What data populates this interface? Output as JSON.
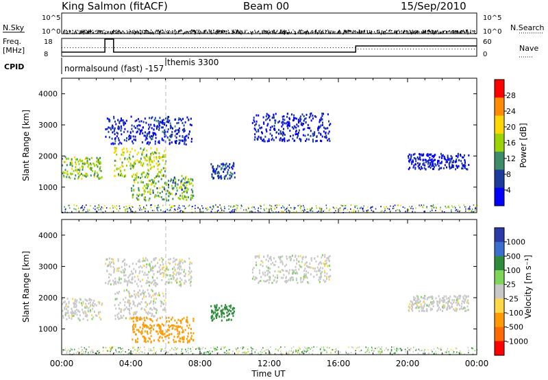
{
  "header": {
    "station": "King Salmon (fitACF)",
    "beam": "Beam 00",
    "date": "15/Sep/2010"
  },
  "noise_panel": {
    "left_label": "N.Sky",
    "right_label": "N.Search",
    "left_ticks": [
      "10^5",
      "10^0"
    ],
    "right_ticks": [
      "10^5",
      "10^0"
    ]
  },
  "freq_panel": {
    "left_label_1": "Freq.",
    "left_label_2": "[MHz]",
    "left_ticks": [
      "18",
      "8"
    ],
    "right_label": "Nave",
    "right_ticks": [
      "60",
      "0"
    ]
  },
  "cpid": {
    "label": "CPID",
    "modes": [
      {
        "text": "normalsound (fast)  -157",
        "start_hour": 0
      },
      {
        "text": "themis 3300",
        "start_hour": 6
      }
    ]
  },
  "chart_data": [
    {
      "type": "heatmap",
      "name": "power",
      "ylabel": "Slant Range [km]",
      "xlabel": "Time UT",
      "xlim_hours": [
        0,
        24
      ],
      "ylim": [
        180,
        4500
      ],
      "x_ticks": [
        "00:00",
        "04:00",
        "08:00",
        "12:00",
        "16:00",
        "20:00",
        "00:00"
      ],
      "y_ticks": [
        1000,
        2000,
        3000,
        4000
      ],
      "colorbar": {
        "label": "Power [dB]",
        "ticks": [
          "28",
          "24",
          "20",
          "16",
          "12",
          "8",
          "4"
        ],
        "colors": [
          "#0000ff",
          "#1c3c9c",
          "#3d8c6a",
          "#9cd400",
          "#ffd700",
          "#ff8c00",
          "#ff0000"
        ]
      }
    },
    {
      "type": "heatmap",
      "name": "velocity",
      "ylabel": "Slant Range [km]",
      "xlabel": "Time UT",
      "xlim_hours": [
        0,
        24
      ],
      "ylim": [
        180,
        4500
      ],
      "x_ticks": [
        "00:00",
        "04:00",
        "08:00",
        "12:00",
        "16:00",
        "20:00",
        "00:00"
      ],
      "y_ticks": [
        1000,
        2000,
        3000,
        4000
      ],
      "colorbar": {
        "label": "Velocity [m s⁻¹]",
        "ticks": [
          "1000",
          "500",
          "100",
          "25",
          "-25",
          "-100",
          "-500",
          "-1000"
        ],
        "colors": [
          "#2a3aa8",
          "#3a6fd0",
          "#2e8b3a",
          "#7fd45a",
          "#c8c8c8",
          "#ffd84a",
          "#ff9a00",
          "#ff6a00",
          "#ff0000"
        ]
      }
    }
  ],
  "echo_regions": [
    {
      "t0": 0.0,
      "t1": 2.3,
      "r0": 1300,
      "r1": 2000,
      "p": 16,
      "v": 0
    },
    {
      "t0": 3.0,
      "t1": 6.0,
      "r0": 1350,
      "r1": 2300,
      "p": 18,
      "v": 0
    },
    {
      "t0": 4.0,
      "t1": 7.6,
      "r0": 600,
      "r1": 1400,
      "p": 15,
      "v": -150
    },
    {
      "t0": 2.5,
      "t1": 7.5,
      "r0": 2400,
      "r1": 3300,
      "p": 6,
      "v": 0
    },
    {
      "t0": 8.6,
      "t1": 10.0,
      "r0": 1300,
      "r1": 1800,
      "p": 8,
      "v": 120
    },
    {
      "t0": 11.0,
      "t1": 15.5,
      "r0": 2500,
      "r1": 3400,
      "p": 5,
      "v": 0
    },
    {
      "t0": 20.0,
      "t1": 23.5,
      "r0": 1600,
      "r1": 2100,
      "p": 5,
      "v": 0
    }
  ]
}
